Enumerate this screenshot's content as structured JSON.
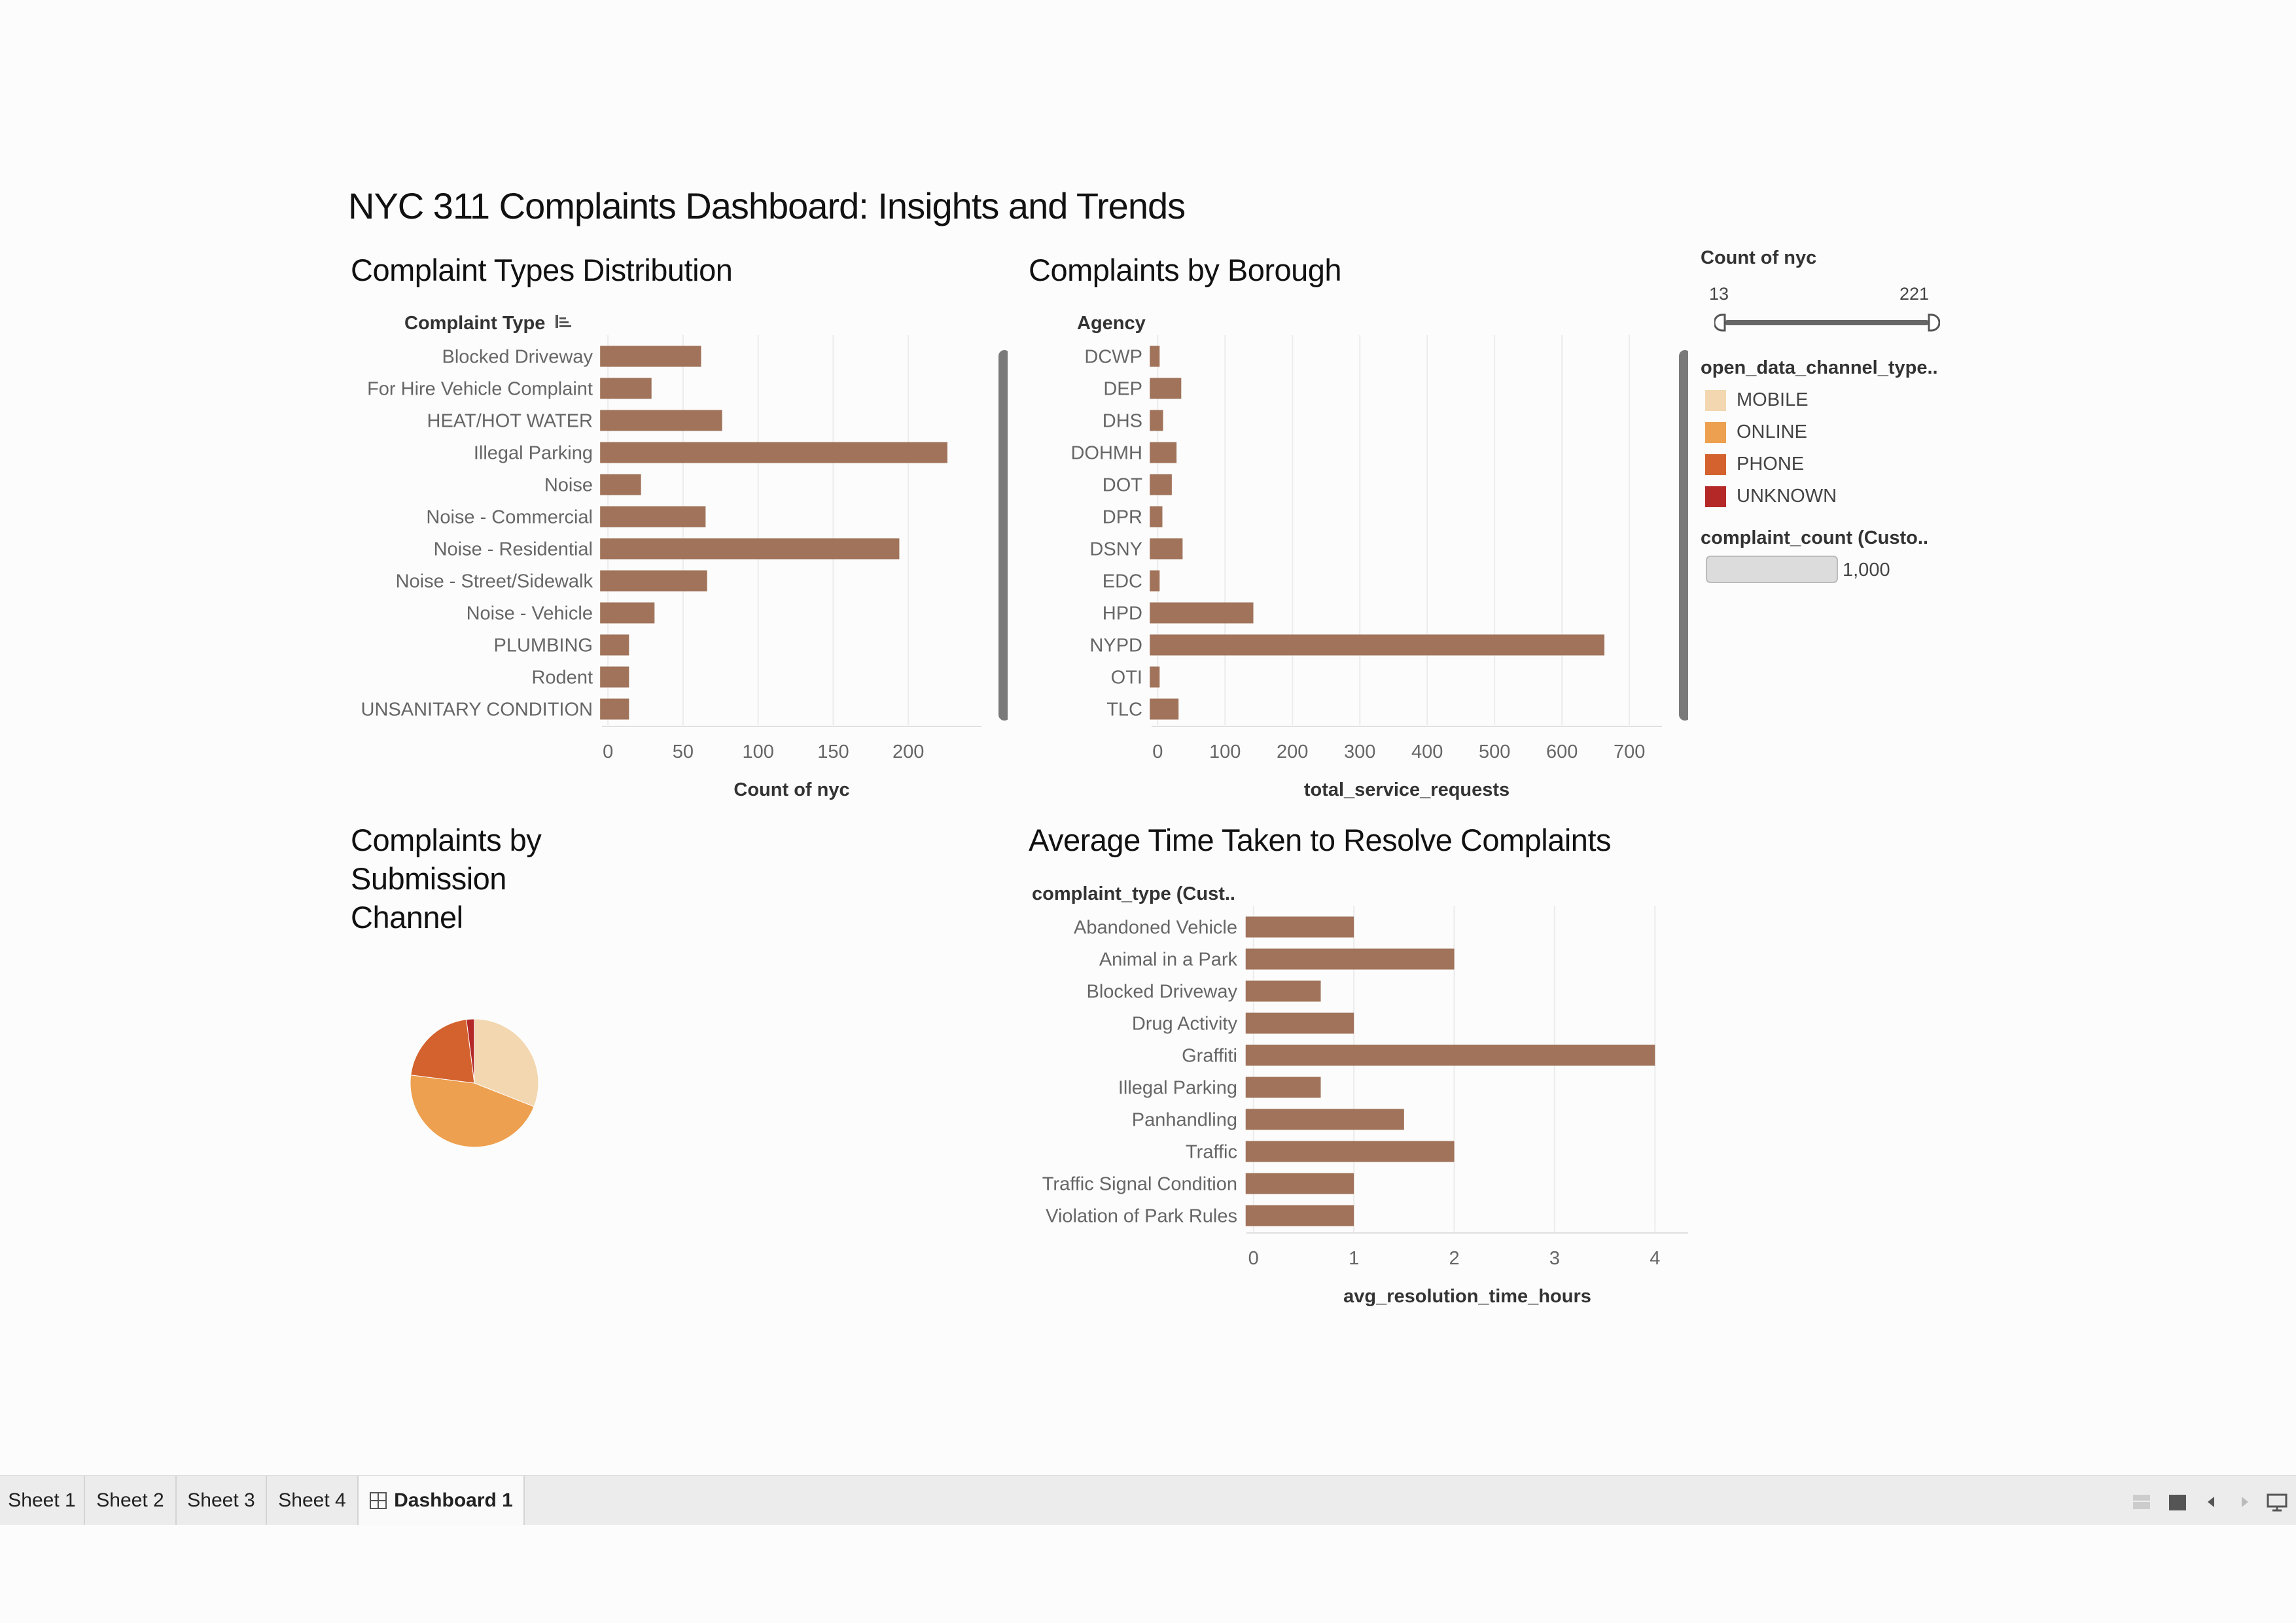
{
  "dashboard": {
    "title": "NYC 311 Complaints Dashboard: Insights and Trends",
    "bar_color": "#a0735a"
  },
  "charts": [
    {
      "type": "bar",
      "orientation": "horizontal",
      "title": "Complaint Types Distribution",
      "row_header": "Complaint Type",
      "categories": [
        "Blocked Driveway",
        "For Hire Vehicle Complaint",
        "HEAT/HOT WATER",
        "Illegal Parking",
        "Noise",
        "Noise - Commercial",
        "Noise - Residential",
        "Noise - Street/Sidewalk",
        "Noise - Vehicle",
        "PLUMBING",
        "Rodent",
        "UNSANITARY CONDITION"
      ],
      "values": [
        62,
        29,
        76,
        226,
        22,
        65,
        194,
        66,
        31,
        14,
        14,
        14
      ],
      "xlabel": "Count of nyc",
      "xticks": [
        0,
        50,
        100,
        150,
        200
      ],
      "xlim": [
        -4,
        240
      ]
    },
    {
      "type": "bar",
      "orientation": "horizontal",
      "title": "Complaints by Borough",
      "row_header": "Agency",
      "categories": [
        "DCWP",
        "DEP",
        "DHS",
        "DOHMH",
        "DOT",
        "DPR",
        "DSNY",
        "EDC",
        "HPD",
        "NYPD",
        "OTI",
        "TLC"
      ],
      "values": [
        1,
        35,
        8,
        28,
        21,
        7,
        37,
        1,
        142,
        663,
        1,
        31
      ],
      "xlabel": "total_service_requests",
      "xticks": [
        0,
        100,
        200,
        300,
        400,
        500,
        600,
        700
      ],
      "xlim": [
        -9,
        729
      ]
    },
    {
      "type": "pie",
      "title": "Complaints by Submission Channel",
      "slices": [
        {
          "name": "MOBILE",
          "value": 31,
          "color": "#f2d7b0"
        },
        {
          "name": "ONLINE",
          "value": 46,
          "color": "#eda04f"
        },
        {
          "name": "PHONE",
          "value": 21,
          "color": "#d4622e"
        },
        {
          "name": "UNKNOWN",
          "value": 2,
          "color": "#b42828"
        }
      ]
    },
    {
      "type": "bar",
      "orientation": "horizontal",
      "title": "Average Time Taken to Resolve Complaints",
      "row_header": "complaint_type (Cust..",
      "categories": [
        "Abandoned Vehicle",
        "Animal in a Park",
        "Blocked Driveway",
        "Drug Activity",
        "Graffiti",
        "Illegal Parking",
        "Panhandling",
        "Traffic",
        "Traffic Signal Condition",
        "Violation of Park Rules"
      ],
      "values": [
        1,
        2,
        0.67,
        1,
        4,
        0.67,
        1.5,
        2,
        1,
        1
      ],
      "xlabel": "avg_resolution_time_hours",
      "xticks": [
        0,
        1,
        2,
        3,
        4
      ],
      "xlim": [
        -0.07,
        4.2
      ]
    }
  ],
  "legend": {
    "count_filter": {
      "title": "Count of nyc",
      "min": "13",
      "max": "221"
    },
    "channel": {
      "title": "open_data_channel_type..",
      "items": [
        {
          "label": "MOBILE",
          "color": "#f2d7b0"
        },
        {
          "label": "ONLINE",
          "color": "#eda04f"
        },
        {
          "label": "PHONE",
          "color": "#d4622e"
        },
        {
          "label": "UNKNOWN",
          "color": "#b42828"
        }
      ]
    },
    "size": {
      "title": "complaint_count (Custo..",
      "value": "1,000"
    }
  },
  "tabs": [
    {
      "label": "Sheet 1",
      "active": false
    },
    {
      "label": "Sheet 2",
      "active": false
    },
    {
      "label": "Sheet 3",
      "active": false
    },
    {
      "label": "Sheet 4",
      "active": false
    },
    {
      "label": "Dashboard 1",
      "active": true
    }
  ],
  "toolbar_icons": [
    "grid-view-icon",
    "single-view-icon",
    "prev-arrow-icon",
    "next-arrow-icon",
    "presentation-icon"
  ]
}
